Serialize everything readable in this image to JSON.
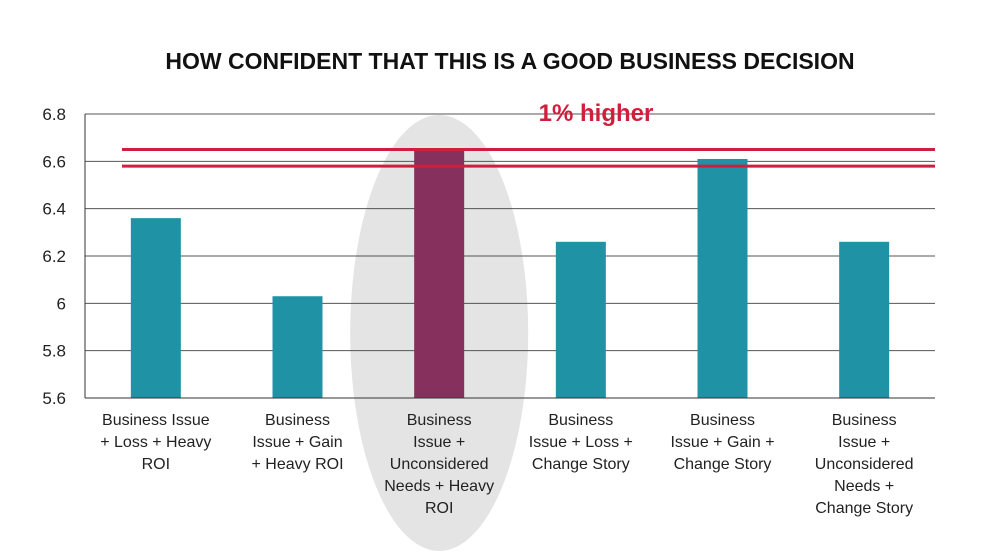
{
  "colors": {
    "bar": "#1f93a5",
    "highlight_bar": "#85305d",
    "reference_line": "#d01f3c",
    "highlight_ellipse": "#e4e4e4",
    "grid": "#555555",
    "axis": "#333333"
  },
  "chart_data": {
    "type": "bar",
    "title": "HOW CONFIDENT THAT THIS IS A GOOD BUSINESS DECISION",
    "xlabel": "",
    "ylabel": "",
    "ylim": [
      5.6,
      6.8
    ],
    "yticks": [
      5.6,
      5.8,
      6.0,
      6.2,
      6.4,
      6.6,
      6.8
    ],
    "ytick_labels": [
      "5.6",
      "5.8",
      "6",
      "6.2",
      "6.4",
      "6.6",
      "6.8"
    ],
    "grid": true,
    "categories": [
      "Business Issue + Loss + Heavy ROI",
      "Business Issue + Gain + Heavy ROI",
      "Business Issue + Unconsidered Needs + Heavy ROI",
      "Business Issue + Loss + Change Story",
      "Business Issue + Gain + Change Story",
      "Business Issue + Unconsidered Needs + Change Story"
    ],
    "category_label_lines": [
      [
        "Business Issue",
        "+ Loss + Heavy",
        "ROI"
      ],
      [
        "Business",
        "Issue + Gain",
        "+ Heavy ROI"
      ],
      [
        "Business",
        "Issue +",
        "Unconsidered",
        "Needs + Heavy",
        "ROI"
      ],
      [
        "Business",
        "Issue + Loss +",
        "Change Story"
      ],
      [
        "Business",
        "Issue + Gain +",
        "Change Story"
      ],
      [
        "Business",
        "Issue +",
        "Unconsidered",
        "Needs +",
        "Change Story"
      ]
    ],
    "values": [
      6.36,
      6.03,
      6.65,
      6.26,
      6.61,
      6.26
    ],
    "highlight_index": 2,
    "reference_lines": [
      6.65,
      6.58
    ],
    "annotation": {
      "text": "1% higher",
      "position": "between-top-gridline-and-reference-lines"
    }
  }
}
